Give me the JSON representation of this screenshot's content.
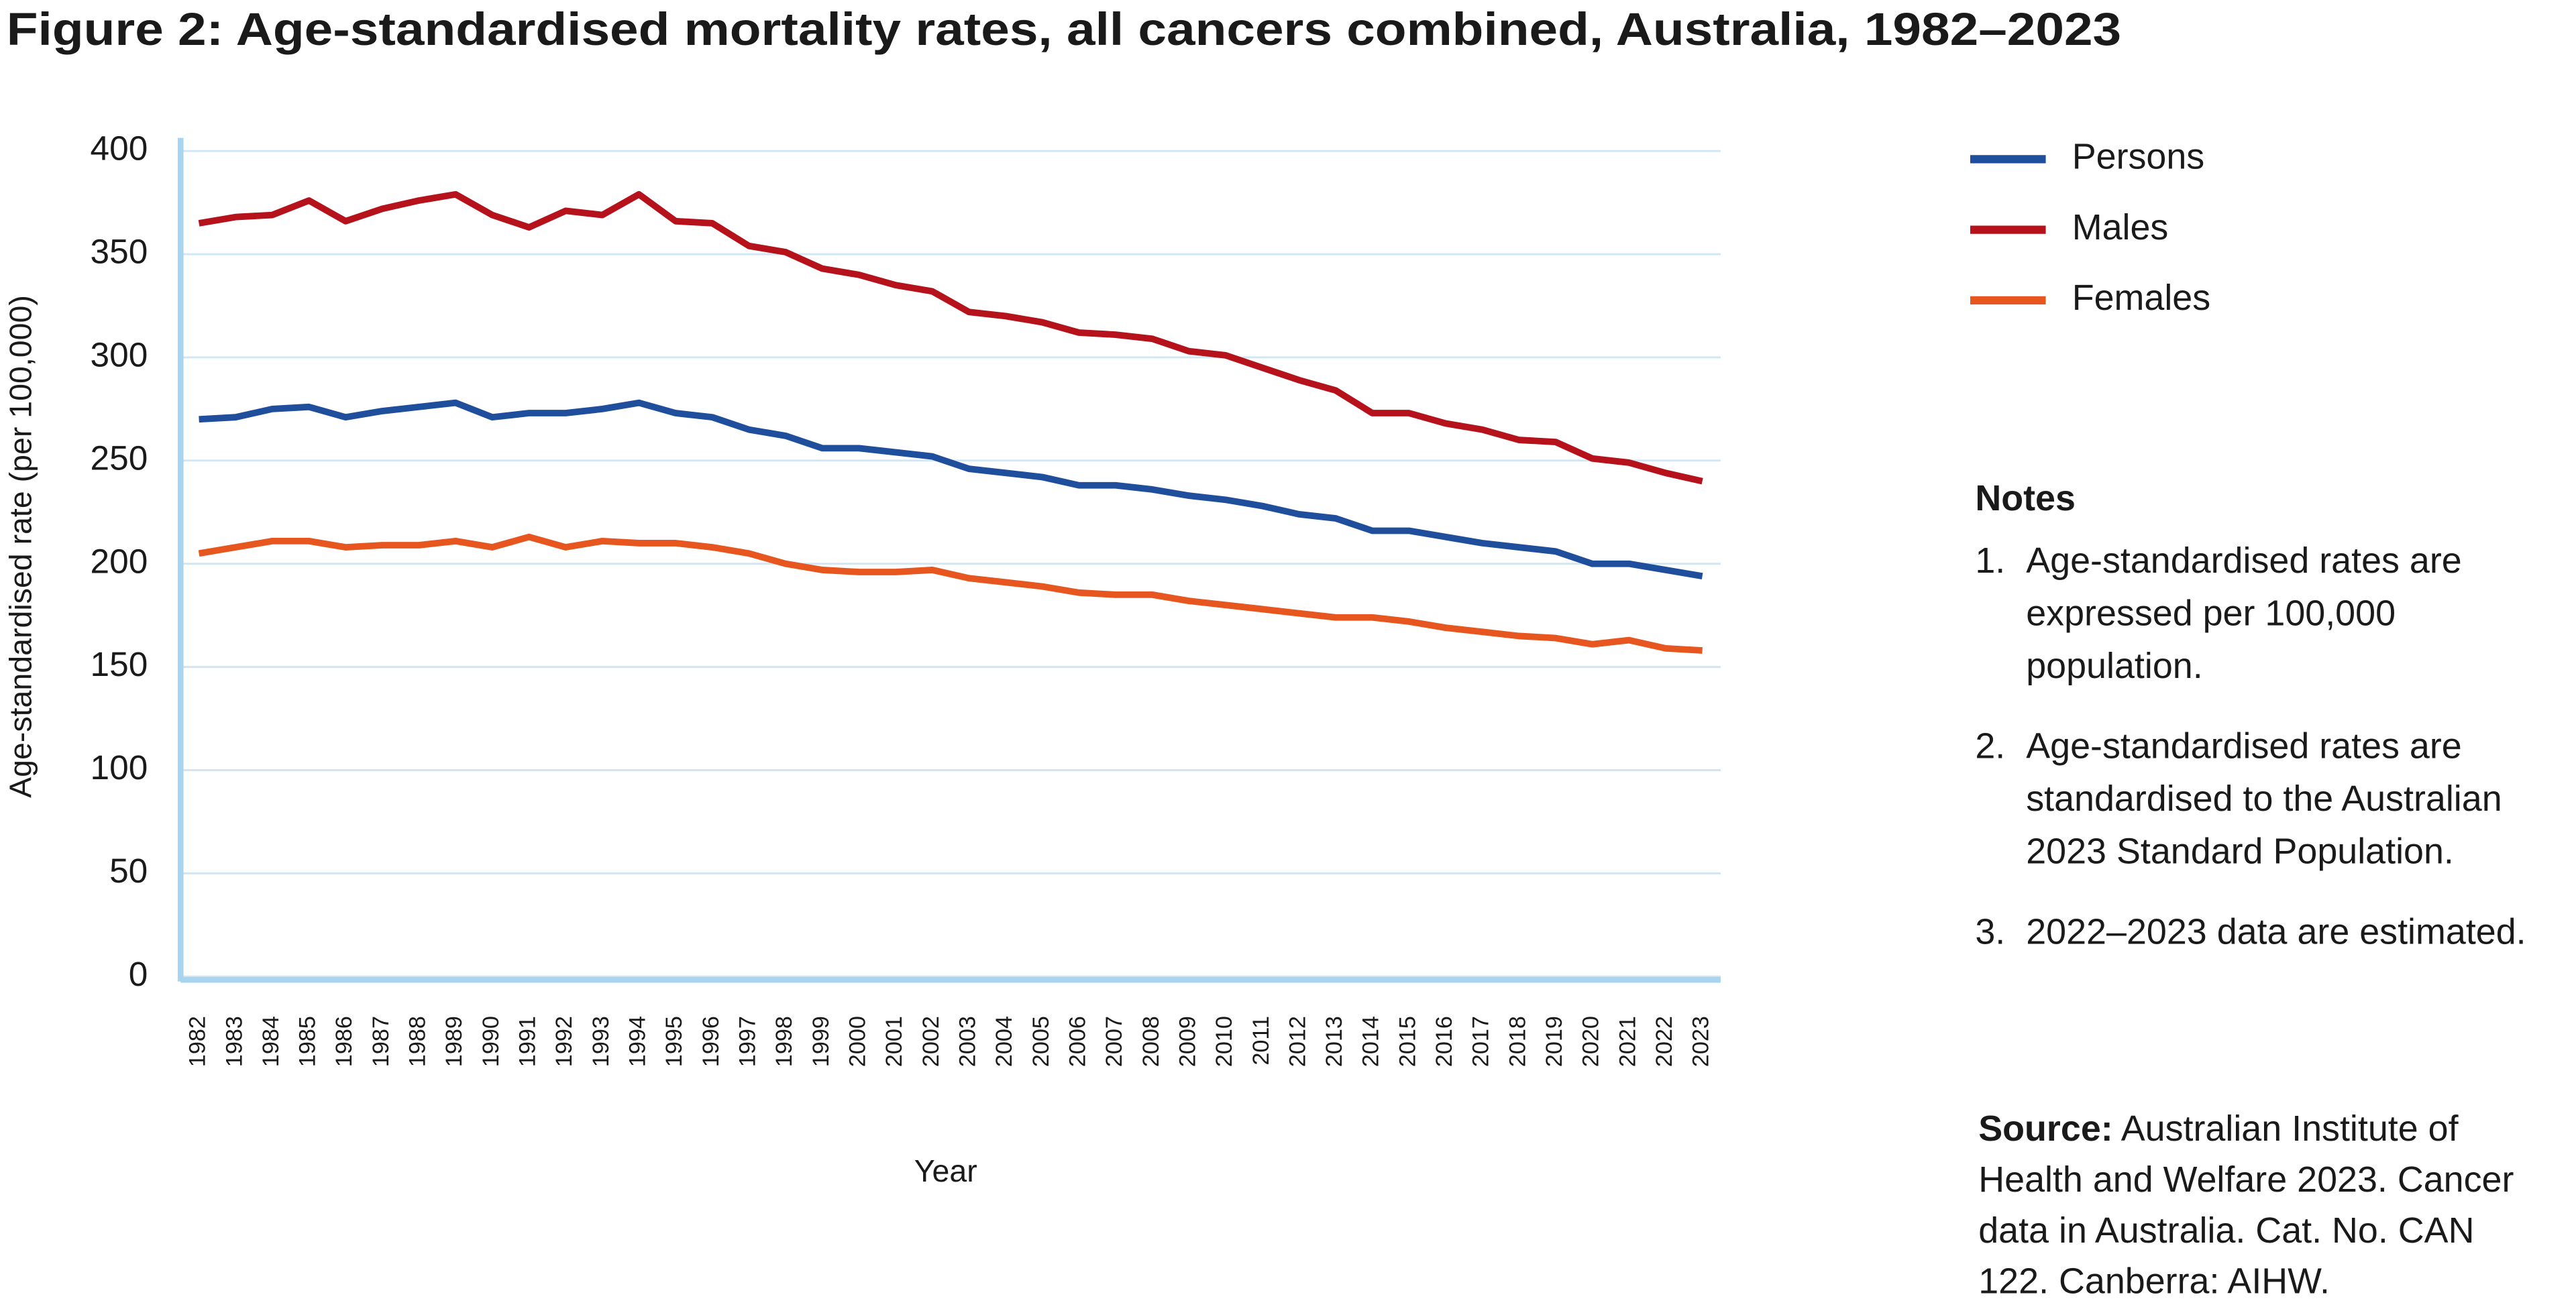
{
  "chart_data": {
    "type": "line",
    "title": "Figure 2: Age-standardised mortality rates, all cancers combined, Australia, 1982–2023",
    "y_label": "Age-standardised rate (per 100,000)",
    "x_label": "Year",
    "categories": [
      "1982",
      "1983",
      "1984",
      "1985",
      "1986",
      "1987",
      "1988",
      "1989",
      "1990",
      "1991",
      "1992",
      "1993",
      "1994",
      "1995",
      "1996",
      "1997",
      "1998",
      "1999",
      "2000",
      "2001",
      "2002",
      "2003",
      "2004",
      "2005",
      "2006",
      "2007",
      "2008",
      "2009",
      "2010",
      "2011",
      "2012",
      "2013",
      "2014",
      "2015",
      "2016",
      "2017",
      "2018",
      "2019",
      "2020",
      "2021",
      "2022",
      "2023"
    ],
    "series": [
      {
        "name": "Persons",
        "color": "#1f4e9c",
        "values": [
          270,
          271,
          275,
          276,
          271,
          274,
          276,
          278,
          271,
          273,
          273,
          275,
          278,
          273,
          271,
          265,
          262,
          256,
          256,
          254,
          252,
          246,
          244,
          242,
          238,
          238,
          236,
          233,
          231,
          228,
          224,
          222,
          216,
          216,
          213,
          210,
          208,
          206,
          200,
          200,
          197,
          194
        ]
      },
      {
        "name": "Males",
        "color": "#b5121b",
        "values": [
          365,
          368,
          369,
          376,
          366,
          372,
          376,
          379,
          369,
          363,
          371,
          369,
          379,
          366,
          365,
          354,
          351,
          343,
          340,
          335,
          332,
          322,
          320,
          317,
          312,
          311,
          309,
          303,
          301,
          295,
          289,
          284,
          273,
          273,
          268,
          265,
          260,
          259,
          251,
          249,
          244,
          240
        ]
      },
      {
        "name": "Females",
        "color": "#e8561f",
        "values": [
          205,
          208,
          211,
          211,
          208,
          209,
          209,
          211,
          208,
          213,
          208,
          211,
          210,
          210,
          208,
          205,
          200,
          197,
          196,
          196,
          197,
          193,
          191,
          189,
          186,
          185,
          185,
          182,
          180,
          178,
          176,
          174,
          174,
          172,
          169,
          167,
          165,
          164,
          161,
          163,
          159,
          158
        ]
      }
    ],
    "ylim": [
      0,
      400
    ],
    "yticks": [
      0,
      50,
      100,
      150,
      200,
      250,
      300,
      350,
      400
    ],
    "grid": true
  },
  "notes": {
    "heading": "Notes",
    "items": [
      {
        "number": "1.",
        "text": "Age-standardised rates are expressed per 100,000 population."
      },
      {
        "number": "2.",
        "text": "Age-standardised rates are standardised to the Australian 2023 Standard Population."
      },
      {
        "number": "3.",
        "text": "2022–2023 data are estimated."
      }
    ]
  },
  "source": {
    "label": "Source:",
    "text": "Australian Institute of Health and Welfare 2023. Cancer data in Australia. Cat. No. CAN 122. Canberra: AIHW."
  }
}
